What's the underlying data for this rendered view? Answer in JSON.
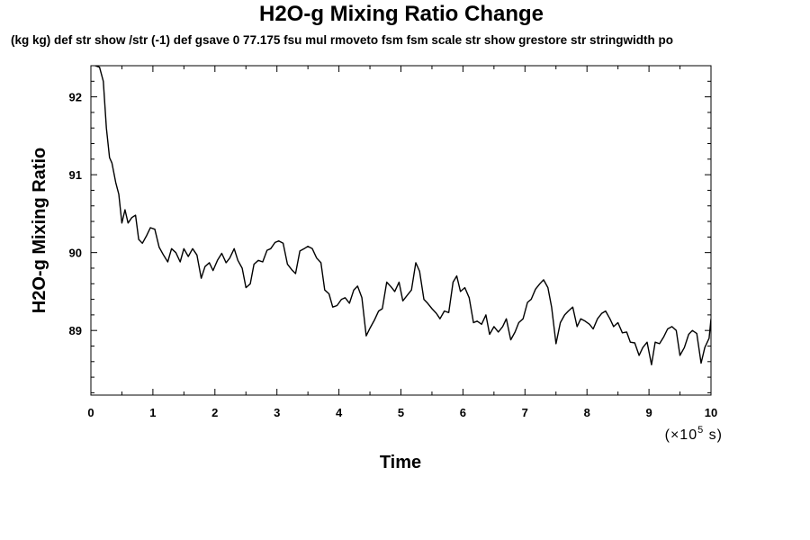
{
  "chart_data": {
    "type": "line",
    "title": "H2O-g Mixing Ratio Change",
    "subtitle": "(kg kg) def str show /str (-1) def gsave 0 77.175 fsu mul rmoveto fsm fsm scale str show grestore str stringwidth po",
    "xlabel": "Time",
    "ylabel": "H2O-g Mixing Ratio",
    "x_unit_prefix": "(×10",
    "x_unit_exp": "5",
    "x_unit_suffix": " s)",
    "xlim": [
      0,
      10
    ],
    "ylim": [
      88.17,
      92.4
    ],
    "xticks": [
      0,
      1,
      2,
      3,
      4,
      5,
      6,
      7,
      8,
      9,
      10
    ],
    "yticks": [
      89,
      90,
      91,
      92
    ],
    "grid": false,
    "series": [
      {
        "values": [
          [
            0.0,
            92.42
          ],
          [
            0.07,
            92.4
          ],
          [
            0.14,
            92.38
          ],
          [
            0.2,
            92.2
          ],
          [
            0.25,
            91.6
          ],
          [
            0.3,
            91.22
          ],
          [
            0.34,
            91.15
          ],
          [
            0.4,
            90.9
          ],
          [
            0.45,
            90.75
          ],
          [
            0.5,
            90.38
          ],
          [
            0.55,
            90.55
          ],
          [
            0.6,
            90.38
          ],
          [
            0.66,
            90.45
          ],
          [
            0.72,
            90.48
          ],
          [
            0.77,
            90.17
          ],
          [
            0.83,
            90.12
          ],
          [
            0.9,
            90.22
          ],
          [
            0.96,
            90.32
          ],
          [
            1.03,
            90.3
          ],
          [
            1.1,
            90.07
          ],
          [
            1.17,
            89.97
          ],
          [
            1.24,
            89.88
          ],
          [
            1.3,
            90.05
          ],
          [
            1.37,
            90.0
          ],
          [
            1.44,
            89.88
          ],
          [
            1.5,
            90.05
          ],
          [
            1.57,
            89.95
          ],
          [
            1.64,
            90.05
          ],
          [
            1.71,
            89.97
          ],
          [
            1.78,
            89.67
          ],
          [
            1.84,
            89.82
          ],
          [
            1.91,
            89.87
          ],
          [
            1.97,
            89.77
          ],
          [
            2.04,
            89.9
          ],
          [
            2.11,
            89.99
          ],
          [
            2.18,
            89.87
          ],
          [
            2.24,
            89.93
          ],
          [
            2.31,
            90.05
          ],
          [
            2.37,
            89.9
          ],
          [
            2.44,
            89.8
          ],
          [
            2.5,
            89.55
          ],
          [
            2.57,
            89.6
          ],
          [
            2.63,
            89.85
          ],
          [
            2.7,
            89.9
          ],
          [
            2.77,
            89.88
          ],
          [
            2.84,
            90.03
          ],
          [
            2.9,
            90.05
          ],
          [
            2.97,
            90.13
          ],
          [
            3.03,
            90.15
          ],
          [
            3.1,
            90.12
          ],
          [
            3.17,
            89.85
          ],
          [
            3.24,
            89.78
          ],
          [
            3.3,
            89.73
          ],
          [
            3.37,
            90.02
          ],
          [
            3.44,
            90.05
          ],
          [
            3.5,
            90.08
          ],
          [
            3.57,
            90.05
          ],
          [
            3.64,
            89.93
          ],
          [
            3.71,
            89.87
          ],
          [
            3.77,
            89.52
          ],
          [
            3.84,
            89.47
          ],
          [
            3.9,
            89.3
          ],
          [
            3.97,
            89.32
          ],
          [
            4.04,
            89.4
          ],
          [
            4.1,
            89.42
          ],
          [
            4.17,
            89.35
          ],
          [
            4.24,
            89.52
          ],
          [
            4.3,
            89.57
          ],
          [
            4.37,
            89.42
          ],
          [
            4.44,
            88.93
          ],
          [
            4.5,
            89.03
          ],
          [
            4.57,
            89.13
          ],
          [
            4.64,
            89.25
          ],
          [
            4.7,
            89.28
          ],
          [
            4.77,
            89.62
          ],
          [
            4.84,
            89.56
          ],
          [
            4.9,
            89.5
          ],
          [
            4.97,
            89.62
          ],
          [
            5.03,
            89.38
          ],
          [
            5.1,
            89.45
          ],
          [
            5.17,
            89.52
          ],
          [
            5.24,
            89.87
          ],
          [
            5.3,
            89.76
          ],
          [
            5.37,
            89.4
          ],
          [
            5.43,
            89.35
          ],
          [
            5.5,
            89.28
          ],
          [
            5.57,
            89.22
          ],
          [
            5.63,
            89.15
          ],
          [
            5.7,
            89.25
          ],
          [
            5.77,
            89.23
          ],
          [
            5.84,
            89.62
          ],
          [
            5.9,
            89.7
          ],
          [
            5.96,
            89.5
          ],
          [
            6.03,
            89.55
          ],
          [
            6.1,
            89.42
          ],
          [
            6.17,
            89.1
          ],
          [
            6.23,
            89.12
          ],
          [
            6.3,
            89.08
          ],
          [
            6.37,
            89.2
          ],
          [
            6.43,
            88.95
          ],
          [
            6.5,
            89.05
          ],
          [
            6.57,
            88.98
          ],
          [
            6.64,
            89.05
          ],
          [
            6.7,
            89.15
          ],
          [
            6.77,
            88.88
          ],
          [
            6.84,
            88.98
          ],
          [
            6.9,
            89.1
          ],
          [
            6.97,
            89.15
          ],
          [
            7.04,
            89.36
          ],
          [
            7.1,
            89.4
          ],
          [
            7.17,
            89.53
          ],
          [
            7.24,
            89.6
          ],
          [
            7.3,
            89.65
          ],
          [
            7.37,
            89.55
          ],
          [
            7.43,
            89.3
          ],
          [
            7.5,
            88.83
          ],
          [
            7.57,
            89.1
          ],
          [
            7.64,
            89.2
          ],
          [
            7.7,
            89.25
          ],
          [
            7.77,
            89.3
          ],
          [
            7.84,
            89.05
          ],
          [
            7.9,
            89.15
          ],
          [
            7.97,
            89.12
          ],
          [
            8.04,
            89.08
          ],
          [
            8.1,
            89.02
          ],
          [
            8.17,
            89.15
          ],
          [
            8.24,
            89.22
          ],
          [
            8.3,
            89.25
          ],
          [
            8.37,
            89.15
          ],
          [
            8.43,
            89.05
          ],
          [
            8.5,
            89.1
          ],
          [
            8.57,
            88.97
          ],
          [
            8.64,
            88.98
          ],
          [
            8.7,
            88.85
          ],
          [
            8.77,
            88.84
          ],
          [
            8.84,
            88.68
          ],
          [
            8.9,
            88.78
          ],
          [
            8.97,
            88.85
          ],
          [
            9.04,
            88.56
          ],
          [
            9.1,
            88.85
          ],
          [
            9.17,
            88.83
          ],
          [
            9.24,
            88.92
          ],
          [
            9.3,
            89.02
          ],
          [
            9.37,
            89.05
          ],
          [
            9.44,
            89.0
          ],
          [
            9.5,
            88.68
          ],
          [
            9.57,
            88.78
          ],
          [
            9.64,
            88.95
          ],
          [
            9.7,
            89.0
          ],
          [
            9.77,
            88.96
          ],
          [
            9.84,
            88.58
          ],
          [
            9.9,
            88.78
          ],
          [
            9.97,
            88.9
          ],
          [
            10.0,
            89.15
          ]
        ]
      }
    ]
  }
}
